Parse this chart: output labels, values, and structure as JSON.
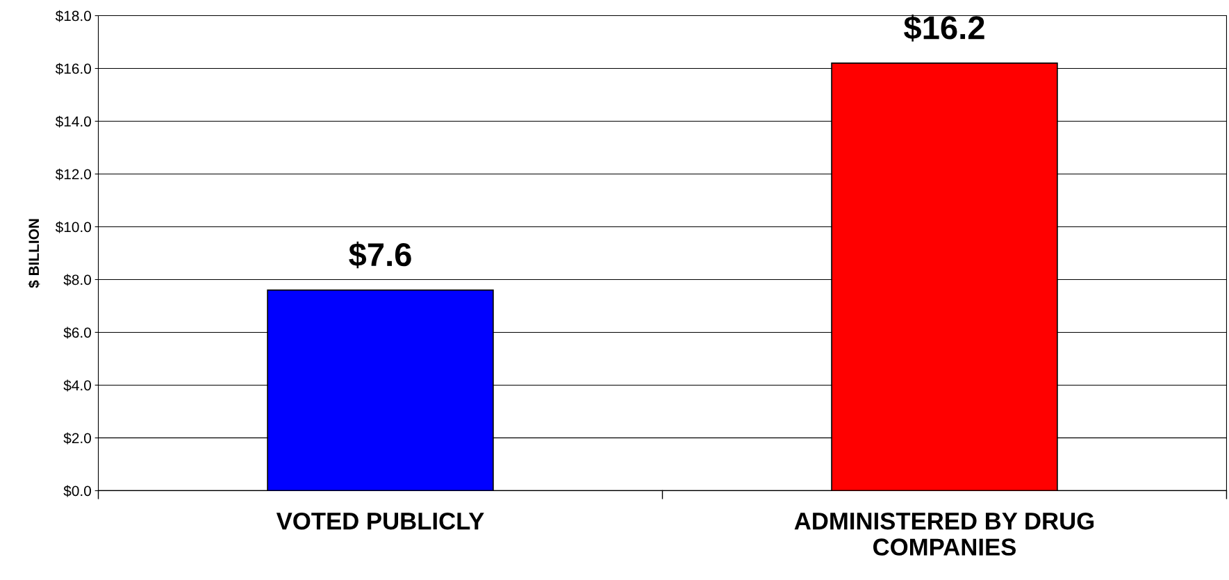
{
  "chart_data": {
    "type": "bar",
    "ylabel": "$ BILLION",
    "categories": [
      "VOTED PUBLICLY",
      "ADMINISTERED BY DRUG\nCOMPANIES"
    ],
    "values": [
      7.6,
      16.2
    ],
    "colors": [
      "#0000ff",
      "#ff0000"
    ],
    "value_labels": [
      "$7.6",
      "$16.2"
    ],
    "ylim": [
      0,
      18
    ],
    "yticks": [
      {
        "value": 0,
        "label": "$0.0"
      },
      {
        "value": 2,
        "label": "$2.0"
      },
      {
        "value": 4,
        "label": "$4.0"
      },
      {
        "value": 6,
        "label": "$6.0"
      },
      {
        "value": 8,
        "label": "$8.0"
      },
      {
        "value": 10,
        "label": "$10.0"
      },
      {
        "value": 12,
        "label": "$12.0"
      },
      {
        "value": 14,
        "label": "$14.0"
      },
      {
        "value": 16,
        "label": "$16.0"
      },
      {
        "value": 18,
        "label": "$18.0"
      }
    ],
    "grid": "y",
    "legend": false
  }
}
